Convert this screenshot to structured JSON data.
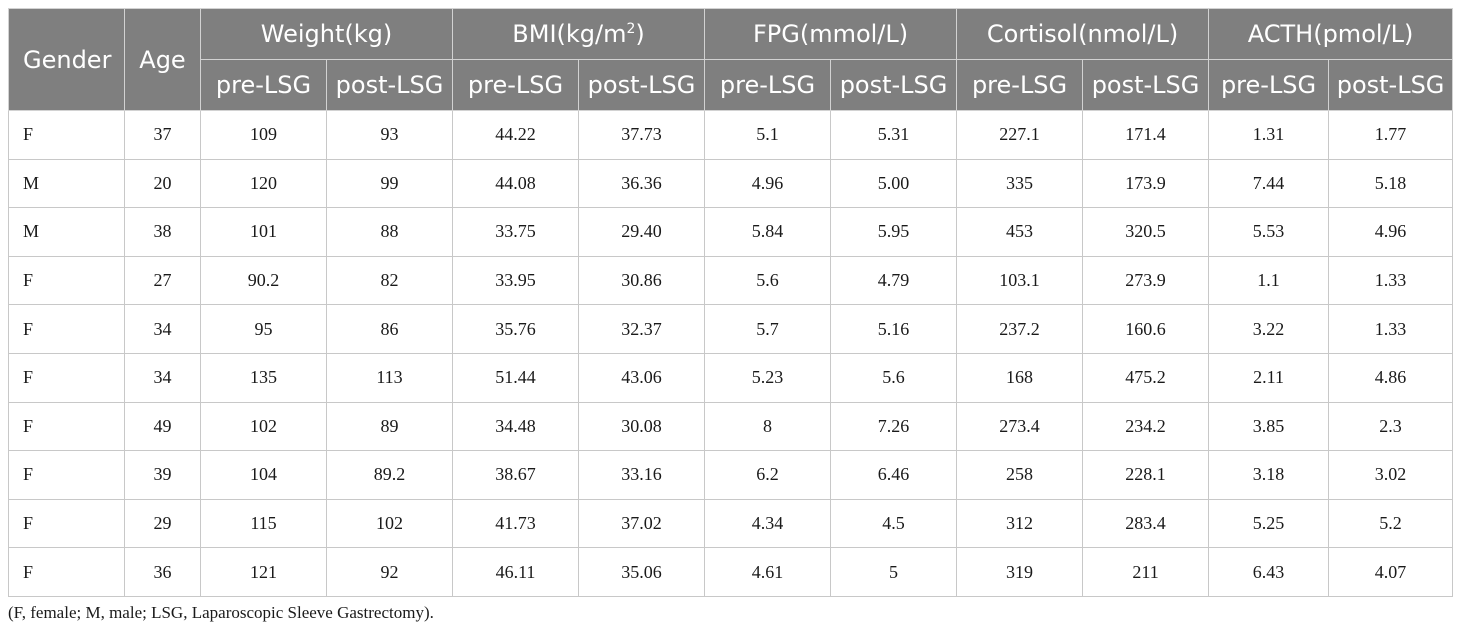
{
  "table": {
    "col_gender": "Gender",
    "col_age": "Age",
    "groups": [
      {
        "label": "Weight(kg)"
      },
      {
        "label_pre": "BMI(kg/m",
        "label_sup": "2",
        "label_post": ")"
      },
      {
        "label": "FPG(mmol/L)"
      },
      {
        "label": "Cortisol(nmol/L)"
      },
      {
        "label": "ACTH(pmol/L)"
      }
    ],
    "sub_pre": "pre-LSG",
    "sub_post": "post-LSG",
    "rows": [
      [
        "F",
        "37",
        "109",
        "93",
        "44.22",
        "37.73",
        "5.1",
        "5.31",
        "227.1",
        "171.4",
        "1.31",
        "1.77"
      ],
      [
        "M",
        "20",
        "120",
        "99",
        "44.08",
        "36.36",
        "4.96",
        "5.00",
        "335",
        "173.9",
        "7.44",
        "5.18"
      ],
      [
        "M",
        "38",
        "101",
        "88",
        "33.75",
        "29.40",
        "5.84",
        "5.95",
        "453",
        "320.5",
        "5.53",
        "4.96"
      ],
      [
        "F",
        "27",
        "90.2",
        "82",
        "33.95",
        "30.86",
        "5.6",
        "4.79",
        "103.1",
        "273.9",
        "1.1",
        "1.33"
      ],
      [
        "F",
        "34",
        "95",
        "86",
        "35.76",
        "32.37",
        "5.7",
        "5.16",
        "237.2",
        "160.6",
        "3.22",
        "1.33"
      ],
      [
        "F",
        "34",
        "135",
        "113",
        "51.44",
        "43.06",
        "5.23",
        "5.6",
        "168",
        "475.2",
        "2.11",
        "4.86"
      ],
      [
        "F",
        "49",
        "102",
        "89",
        "34.48",
        "30.08",
        "8",
        "7.26",
        "273.4",
        "234.2",
        "3.85",
        "2.3"
      ],
      [
        "F",
        "39",
        "104",
        "89.2",
        "38.67",
        "33.16",
        "6.2",
        "6.46",
        "258",
        "228.1",
        "3.18",
        "3.02"
      ],
      [
        "F",
        "29",
        "115",
        "102",
        "41.73",
        "37.02",
        "4.34",
        "4.5",
        "312",
        "283.4",
        "5.25",
        "5.2"
      ],
      [
        "F",
        "36",
        "121",
        "92",
        "46.11",
        "35.06",
        "4.61",
        "5",
        "319",
        "211",
        "6.43",
        "4.07"
      ]
    ]
  },
  "footnote": "(F, female; M, male; LSG, Laparoscopic Sleeve Gastrectomy)."
}
